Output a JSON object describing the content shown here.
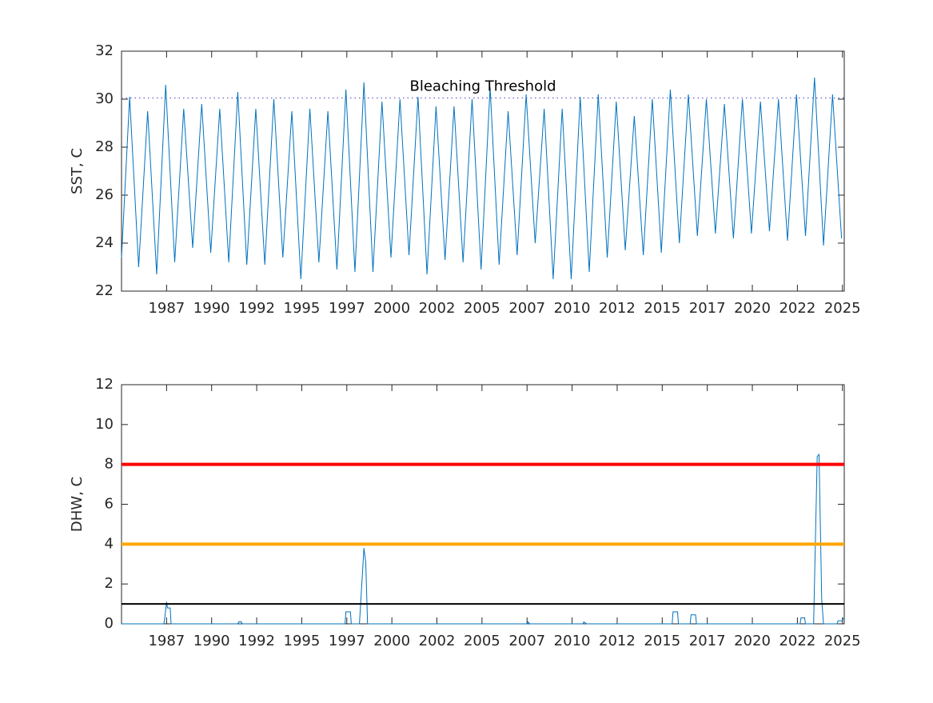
{
  "chart_data": [
    {
      "type": "line",
      "ylabel": "SST, C",
      "color": "#0072bd",
      "xlim": [
        1985,
        2025.1
      ],
      "ylim": [
        22,
        32
      ],
      "yticks": [
        22,
        24,
        26,
        28,
        30,
        32
      ],
      "xticks": [
        {
          "value": 1987.5,
          "label": "1987"
        },
        1990,
        {
          "value": 1992.5,
          "label": "1992"
        },
        1995,
        {
          "value": 1997.5,
          "label": "1997"
        },
        2000,
        {
          "value": 2002.5,
          "label": "2002"
        },
        2005,
        {
          "value": 2007.5,
          "label": "2007"
        },
        2010,
        {
          "value": 2012.5,
          "label": "2012"
        },
        2015,
        {
          "value": 2017.5,
          "label": "2017"
        },
        2020,
        {
          "value": 2022.5,
          "label": "2022"
        },
        2025
      ],
      "x": [
        1985.0,
        1985.45,
        1985.95,
        1986.45,
        1986.95,
        1987.45,
        1987.95,
        1988.45,
        1988.95,
        1989.45,
        1989.95,
        1990.45,
        1990.95,
        1991.45,
        1991.95,
        1992.45,
        1992.95,
        1993.45,
        1993.95,
        1994.45,
        1994.95,
        1995.45,
        1995.95,
        1996.45,
        1996.95,
        1997.45,
        1997.95,
        1998.45,
        1998.95,
        1999.45,
        1999.95,
        2000.45,
        2000.95,
        2001.45,
        2001.95,
        2002.45,
        2002.95,
        2003.45,
        2003.95,
        2004.45,
        2004.95,
        2005.45,
        2005.95,
        2006.45,
        2006.95,
        2007.45,
        2007.95,
        2008.45,
        2008.95,
        2009.45,
        2009.95,
        2010.45,
        2010.95,
        2011.45,
        2011.95,
        2012.45,
        2012.95,
        2013.45,
        2013.95,
        2014.45,
        2014.95,
        2015.45,
        2015.95,
        2016.45,
        2016.95,
        2017.45,
        2017.95,
        2018.45,
        2018.95,
        2019.45,
        2019.95,
        2020.45,
        2020.95,
        2021.45,
        2021.95,
        2022.45,
        2022.95,
        2023.45,
        2023.95,
        2024.45,
        2024.95
      ],
      "values": [
        23.4,
        30.1,
        23.0,
        29.5,
        22.7,
        30.6,
        23.2,
        29.6,
        23.8,
        29.8,
        23.6,
        29.6,
        23.2,
        30.3,
        23.1,
        29.6,
        23.1,
        30.0,
        23.4,
        29.5,
        22.5,
        29.6,
        23.2,
        29.5,
        22.9,
        30.4,
        22.8,
        30.7,
        22.8,
        29.9,
        23.4,
        30.0,
        23.5,
        30.1,
        22.7,
        29.7,
        23.3,
        29.7,
        23.2,
        30.0,
        22.9,
        30.5,
        23.1,
        29.5,
        23.5,
        30.2,
        24.0,
        29.6,
        22.5,
        29.6,
        22.5,
        30.1,
        22.8,
        30.2,
        23.4,
        29.9,
        23.7,
        29.3,
        23.5,
        30.0,
        23.6,
        30.4,
        24.0,
        30.2,
        24.3,
        30.0,
        24.4,
        29.8,
        24.2,
        30.0,
        24.4,
        29.9,
        24.5,
        30.0,
        24.1,
        30.2,
        24.3,
        30.9,
        23.9,
        30.2,
        24.2
      ],
      "reference_lines": [
        {
          "value": 30.05,
          "color": "#7e6fd0",
          "style": "dotted",
          "label": "Bleaching Threshold"
        }
      ]
    },
    {
      "type": "line",
      "ylabel": "DHW, C",
      "color": "#0072bd",
      "xlim": [
        1985,
        2025.1
      ],
      "ylim": [
        0,
        12
      ],
      "yticks": [
        0,
        2,
        4,
        6,
        8,
        10,
        12
      ],
      "xticks": [
        {
          "value": 1987.5,
          "label": "1987"
        },
        1990,
        {
          "value": 1992.5,
          "label": "1992"
        },
        1995,
        {
          "value": 1997.5,
          "label": "1997"
        },
        2000,
        {
          "value": 2002.5,
          "label": "2002"
        },
        2005,
        {
          "value": 2007.5,
          "label": "2007"
        },
        2010,
        {
          "value": 2012.5,
          "label": "2012"
        },
        2015,
        {
          "value": 2017.5,
          "label": "2017"
        },
        2020,
        {
          "value": 2022.5,
          "label": "2022"
        },
        2025
      ],
      "x": [
        1985.0,
        1987.35,
        1987.4,
        1987.5,
        1987.55,
        1987.7,
        1987.75,
        1991.45,
        1991.5,
        1991.65,
        1991.7,
        1997.4,
        1997.45,
        1997.7,
        1997.75,
        1998.2,
        1998.45,
        1998.55,
        1998.65,
        2007.5,
        2007.55,
        2007.65,
        2010.6,
        2010.65,
        2010.8,
        2015.55,
        2015.6,
        2015.85,
        2015.9,
        2016.55,
        2016.6,
        2016.85,
        2016.9,
        2022.65,
        2022.7,
        2022.9,
        2022.95,
        2023.4,
        2023.6,
        2023.7,
        2023.85,
        2023.95,
        2024.7,
        2024.75,
        2025.0,
        2025.05
      ],
      "values": [
        0,
        0,
        0.3,
        1.1,
        0.8,
        0.8,
        0,
        0,
        0.1,
        0.1,
        0,
        0,
        0.6,
        0.6,
        0,
        0,
        3.8,
        3.1,
        0,
        0,
        0.1,
        0,
        0,
        0.1,
        0,
        0,
        0.6,
        0.6,
        0,
        0,
        0.45,
        0.45,
        0,
        0,
        0.3,
        0.3,
        0,
        0,
        8.4,
        8.5,
        1.2,
        0,
        0,
        0.15,
        0.15,
        0.3
      ],
      "reference_lines": [
        {
          "value": 8,
          "color": "#ff0000",
          "style": "thick"
        },
        {
          "value": 4,
          "color": "#ffa500",
          "style": "thick"
        },
        {
          "value": 1,
          "color": "#000000",
          "style": "solid"
        }
      ]
    }
  ]
}
